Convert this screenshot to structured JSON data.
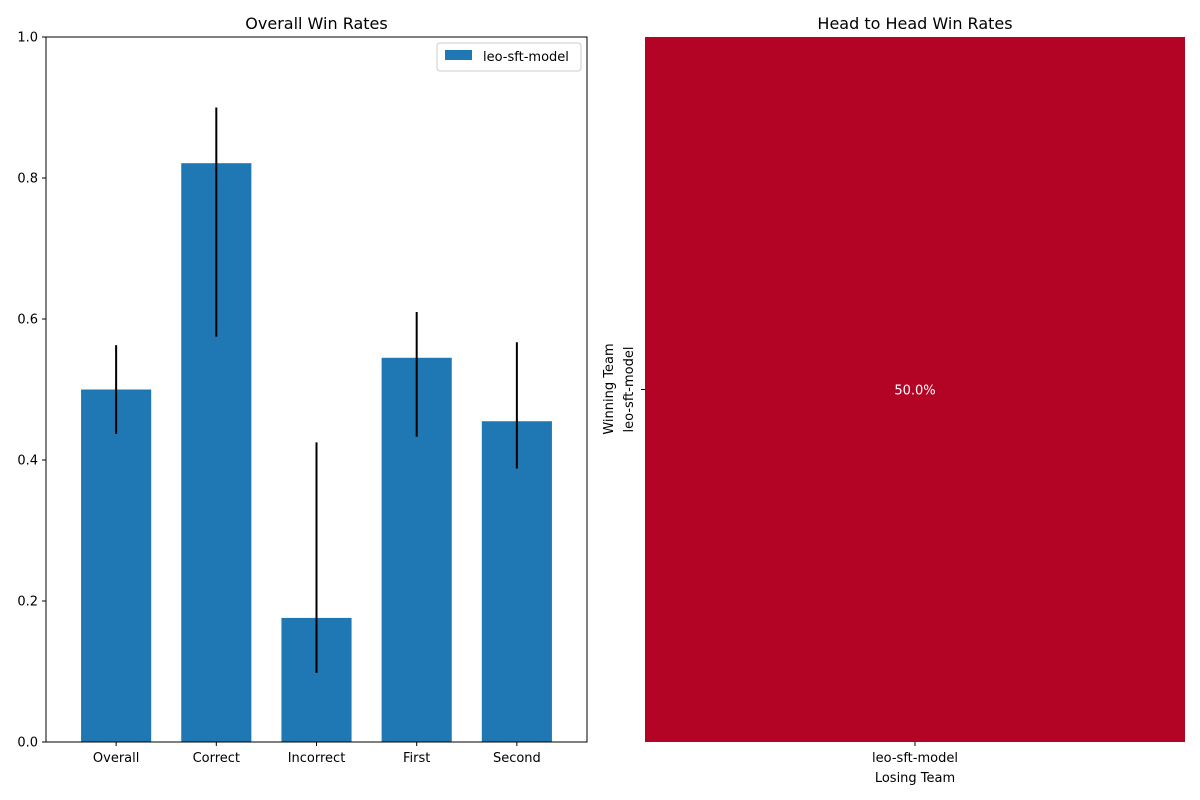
{
  "chart_data": [
    {
      "type": "bar",
      "title": "Overall Win Rates",
      "xlabel": "",
      "ylabel": "",
      "ylim": [
        0,
        1
      ],
      "yticks": [
        "0.0",
        "0.2",
        "0.4",
        "0.6",
        "0.8",
        "1.0"
      ],
      "categories": [
        "Overall",
        "Correct",
        "Incorrect",
        "First",
        "Second"
      ],
      "series": [
        {
          "name": "leo-sft-model",
          "color": "#1f77b4",
          "values": [
            0.5,
            0.821,
            0.176,
            0.545,
            0.455
          ],
          "error_low": [
            0.437,
            0.575,
            0.098,
            0.433,
            0.388
          ],
          "error_high": [
            0.563,
            0.9,
            0.425,
            0.61,
            0.567
          ]
        }
      ],
      "error_bar_color": "#000000",
      "legend": "top-right",
      "grid": false
    },
    {
      "type": "heatmap",
      "title": "Head to Head Win Rates",
      "xlabel": "Losing Team",
      "ylabel": "Winning Team",
      "x_categories": [
        "leo-sft-model"
      ],
      "y_categories": [
        "leo-sft-model"
      ],
      "values": [
        [
          0.5
        ]
      ],
      "cell_labels": [
        [
          "50.0%"
        ]
      ],
      "cell_color": "#b40426"
    }
  ]
}
